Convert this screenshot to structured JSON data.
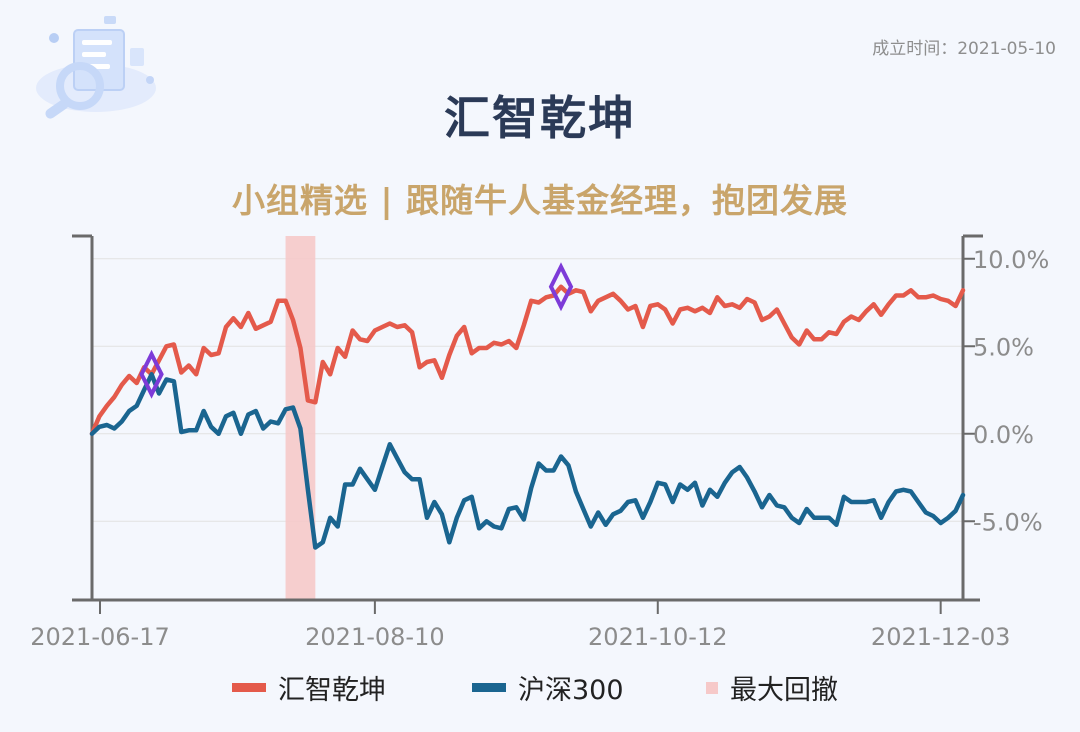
{
  "header": {
    "founded": "成立时间：2021-05-10",
    "title": "汇智乾坤",
    "subtitle": "小组精选 | 跟随牛人基金经理，抱团发展"
  },
  "colors": {
    "primary": "#e45a4b",
    "benchmark": "#1a6590",
    "drawdown": "#f6c9c9",
    "marker": "#7d3bd8",
    "axis": "#6a6a6a",
    "tick_text": "#8c8c8c",
    "grid": "#e2e2e2"
  },
  "chart_data": {
    "type": "line",
    "x_tick_labels": [
      "2021-06-17",
      "2021-08-10",
      "2021-10-12",
      "2021-12-03"
    ],
    "x_tick_index": [
      0,
      38,
      76,
      114
    ],
    "y_tick_labels": [
      "10.0%",
      "5.0%",
      "0.0%",
      "-5.0%"
    ],
    "y_tick_values": [
      10,
      5,
      0,
      -5
    ],
    "ylim": [
      -9.5,
      11.3
    ],
    "y_unit": "%",
    "grid": true,
    "legend_position": "bottom",
    "series": [
      {
        "name": "汇智乾坤",
        "values": [
          0,
          1,
          1.6,
          2.1,
          2.8,
          3.3,
          2.9,
          3.8,
          3.4,
          4.2,
          5,
          5.1,
          3.5,
          3.9,
          3.4,
          4.9,
          4.5,
          4.6,
          6.1,
          6.6,
          6.1,
          6.9,
          6,
          6.2,
          6.4,
          7.6,
          7.6,
          6.5,
          4.9,
          1.9,
          1.8,
          4.1,
          3.4,
          4.9,
          4.4,
          5.9,
          5.4,
          5.3,
          5.9,
          6.1,
          6.3,
          6.1,
          6.2,
          5.8,
          3.8,
          4.1,
          4.2,
          3.2,
          4.5,
          5.6,
          6.1,
          4.6,
          4.9,
          4.9,
          5.2,
          5.1,
          5.3,
          4.9,
          6.2,
          7.6,
          7.5,
          7.8,
          7.9,
          8.4,
          8,
          8.2,
          8.1,
          7,
          7.6,
          7.8,
          8,
          7.6,
          7.1,
          7.3,
          6.1,
          7.3,
          7.4,
          7.1,
          6.3,
          7.1,
          7.2,
          7,
          7.2,
          6.9,
          7.8,
          7.3,
          7.4,
          7.2,
          7.7,
          7.5,
          6.5,
          6.7,
          7.1,
          6.3,
          5.5,
          5.1,
          5.9,
          5.4,
          5.4,
          5.8,
          5.7,
          6.4,
          6.7,
          6.5,
          7,
          7.4,
          6.8,
          7.4,
          7.9,
          7.9,
          8.2,
          7.8,
          7.8,
          7.9,
          7.7,
          7.6,
          7.3,
          8.2
        ]
      },
      {
        "name": "沪深300",
        "values": [
          0,
          0.4,
          0.5,
          0.3,
          0.7,
          1.3,
          1.6,
          2.5,
          3.4,
          2.3,
          3.1,
          3,
          0.1,
          0.2,
          0.2,
          1.3,
          0.4,
          0,
          1,
          1.2,
          0,
          1.1,
          1.3,
          0.3,
          0.7,
          0.6,
          1.4,
          1.5,
          0.3,
          -3.2,
          -6.5,
          -6.2,
          -4.8,
          -5.3,
          -2.9,
          -2.9,
          -2,
          -2.6,
          -3.2,
          -1.9,
          -0.6,
          -1.4,
          -2.2,
          -2.6,
          -2.6,
          -4.8,
          -3.9,
          -4.6,
          -6.2,
          -4.8,
          -3.8,
          -3.6,
          -5.4,
          -5,
          -5.3,
          -5.4,
          -4.3,
          -4.2,
          -4.9,
          -3.1,
          -1.7,
          -2.1,
          -2.1,
          -1.3,
          -1.8,
          -3.3,
          -4.3,
          -5.3,
          -4.5,
          -5.2,
          -4.6,
          -4.4,
          -3.9,
          -3.8,
          -4.8,
          -3.9,
          -2.8,
          -2.9,
          -3.9,
          -2.9,
          -3.2,
          -2.8,
          -4.1,
          -3.2,
          -3.6,
          -2.8,
          -2.2,
          -1.9,
          -2.5,
          -3.3,
          -4.2,
          -3.5,
          -4.1,
          -4.2,
          -4.8,
          -5.1,
          -4.3,
          -4.8,
          -4.8,
          -4.8,
          -5.2,
          -3.6,
          -3.9,
          -3.9,
          -3.9,
          -3.8,
          -4.8,
          -3.9,
          -3.3,
          -3.2,
          -3.3,
          -3.9,
          -4.5,
          -4.7,
          -5.1,
          -4.8,
          -4.4,
          -3.5
        ]
      }
    ],
    "drawdown_legend": "最大回撤",
    "max_drawdown_range_index": [
      26,
      30
    ],
    "peak_marker_index": [
      8,
      63
    ]
  }
}
